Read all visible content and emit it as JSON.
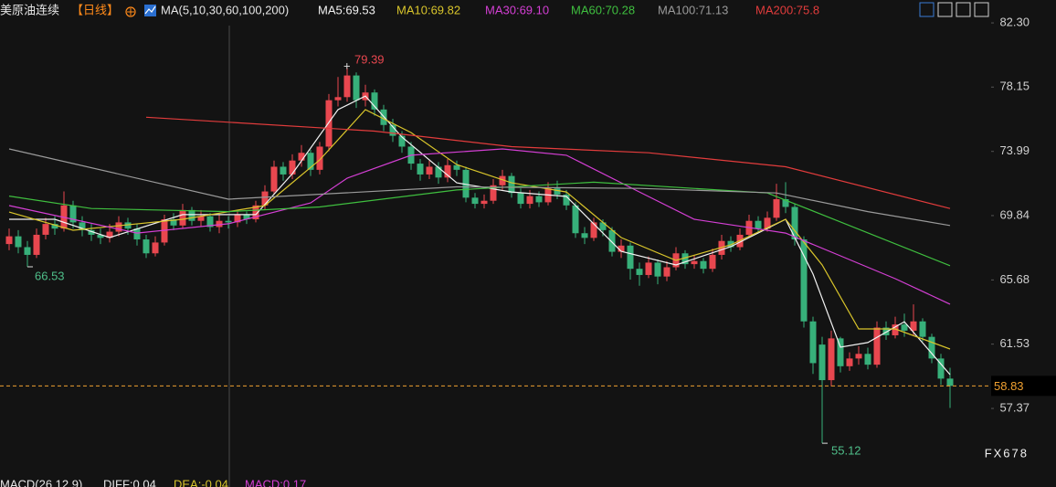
{
  "chart_data": {
    "type": "candlestick",
    "title": "美原油连续",
    "period": "【日线】",
    "indicator": "MA(5,10,30,60,100,200)",
    "up_color": "#e8474f",
    "down_color": "#37b07a",
    "ylim": [
      53.65,
      83.78
    ],
    "yticks": [
      {
        "value": 82.3,
        "label": "82.30"
      },
      78.15,
      73.99,
      69.84,
      65.68,
      61.53,
      57.37
    ],
    "grid": false,
    "open": [
      68.0,
      68.5,
      67.8,
      67.3,
      68.6,
      69.3,
      69.0,
      70.5,
      69.4,
      68.9,
      68.6,
      68.4,
      68.8,
      69.4,
      69.0,
      68.3,
      67.4,
      68.1,
      69.6,
      69.2,
      70.2,
      69.5,
      69.8,
      69.1,
      69.5,
      69.4,
      69.9,
      69.6,
      70.5,
      71.4,
      73.0,
      72.5,
      73.4,
      73.9,
      72.8,
      74.3,
      77.3,
      77.5,
      78.9,
      77.3,
      77.8,
      76.7,
      75.7,
      75.0,
      74.3,
      73.2,
      72.5,
      73.0,
      72.3,
      73.1,
      72.8,
      71.0,
      70.6,
      70.8,
      71.8,
      72.4,
      71.3,
      70.6,
      71.1,
      70.7,
      71.6,
      71.2,
      70.5,
      68.7,
      68.4,
      69.4,
      68.9,
      67.5,
      67.9,
      66.4,
      66.0,
      66.8,
      65.9,
      66.5,
      67.4,
      66.7,
      66.9,
      66.4,
      67.3,
      68.2,
      67.8,
      68.6,
      69.5,
      69.0,
      69.7,
      70.9,
      70.4,
      68.3,
      63.0,
      61.5,
      59.2,
      61.9,
      60.1,
      60.6,
      60.9,
      60.2,
      62.6,
      62.1,
      62.8,
      62.4,
      63.0,
      62.0,
      60.6,
      59.3
    ],
    "high": [
      69.0,
      68.9,
      68.2,
      69.0,
      69.7,
      69.8,
      71.4,
      70.8,
      69.8,
      69.3,
      69.0,
      69.3,
      69.8,
      69.7,
      69.3,
      68.6,
      68.5,
      69.9,
      70.0,
      70.6,
      70.4,
      70.2,
      70.0,
      69.9,
      69.8,
      70.2,
      70.1,
      70.8,
      71.8,
      73.4,
      73.3,
      73.8,
      74.4,
      74.1,
      74.6,
      77.7,
      78.8,
      79.39,
      79.1,
      78.3,
      78.0,
      77.0,
      76.1,
      75.3,
      74.6,
      73.5,
      73.4,
      73.3,
      73.5,
      73.4,
      73.0,
      71.3,
      71.2,
      72.2,
      72.8,
      72.6,
      71.6,
      71.5,
      71.4,
      72.0,
      72.1,
      71.5,
      70.7,
      69.1,
      69.7,
      69.6,
      69.1,
      68.3,
      68.1,
      66.8,
      67.2,
      67.0,
      66.9,
      67.8,
      67.6,
      67.3,
      67.1,
      67.7,
      68.6,
      68.5,
      69.0,
      69.9,
      69.8,
      70.1,
      71.9,
      72.0,
      70.6,
      68.5,
      63.3,
      62.0,
      62.4,
      62.0,
      61.0,
      61.4,
      61.3,
      63.0,
      63.0,
      63.3,
      63.5,
      64.1,
      63.2,
      62.2,
      60.9,
      60.0
    ],
    "low": [
      67.6,
      67.4,
      66.53,
      67.1,
      68.3,
      68.6,
      68.8,
      69.0,
      68.5,
      68.2,
      68.0,
      68.1,
      68.5,
      68.6,
      67.9,
      67.1,
      67.2,
      67.9,
      68.9,
      69.0,
      69.2,
      69.1,
      68.8,
      68.7,
      69.0,
      69.1,
      69.3,
      69.4,
      70.2,
      71.2,
      72.1,
      72.2,
      73.0,
      72.4,
      72.5,
      74.0,
      76.9,
      77.2,
      76.8,
      76.9,
      76.3,
      75.3,
      74.6,
      73.9,
      72.8,
      72.1,
      72.2,
      71.9,
      72.0,
      72.4,
      70.7,
      70.3,
      70.3,
      70.6,
      71.5,
      71.0,
      70.3,
      70.3,
      70.4,
      70.5,
      70.9,
      70.2,
      68.4,
      68.0,
      68.2,
      68.5,
      67.2,
      67.1,
      65.7,
      65.3,
      65.8,
      65.4,
      65.6,
      66.3,
      66.4,
      66.4,
      66.1,
      66.2,
      67.0,
      67.5,
      67.6,
      68.4,
      68.7,
      68.8,
      69.5,
      70.0,
      67.9,
      62.6,
      59.6,
      55.12,
      58.8,
      59.7,
      59.8,
      60.2,
      59.9,
      60.0,
      61.8,
      61.9,
      62.0,
      62.1,
      61.7,
      60.3,
      58.9,
      57.4
    ],
    "close": [
      68.5,
      67.8,
      67.3,
      68.6,
      69.3,
      69.0,
      70.5,
      69.4,
      68.9,
      68.6,
      68.4,
      68.8,
      69.4,
      69.0,
      68.3,
      67.4,
      68.1,
      69.6,
      69.2,
      70.2,
      69.5,
      69.8,
      69.1,
      69.5,
      69.4,
      69.9,
      69.6,
      70.5,
      71.4,
      73.0,
      72.5,
      73.4,
      73.9,
      72.8,
      74.3,
      77.3,
      77.5,
      78.9,
      77.3,
      77.8,
      76.7,
      75.7,
      75.0,
      74.3,
      73.2,
      72.5,
      73.0,
      72.3,
      73.1,
      72.8,
      71.0,
      70.6,
      70.8,
      71.8,
      72.4,
      71.3,
      70.6,
      71.1,
      70.7,
      71.6,
      71.2,
      70.5,
      68.7,
      68.4,
      69.4,
      68.9,
      67.5,
      67.9,
      66.4,
      66.0,
      66.8,
      65.9,
      66.5,
      67.4,
      66.7,
      66.9,
      66.4,
      67.3,
      68.2,
      67.8,
      68.6,
      69.5,
      69.0,
      69.7,
      70.9,
      70.4,
      68.3,
      63.0,
      60.3,
      59.2,
      61.9,
      60.1,
      60.6,
      60.9,
      60.2,
      62.6,
      62.1,
      62.8,
      62.4,
      63.0,
      62.0,
      60.6,
      59.3,
      58.83
    ],
    "series": [
      {
        "name": "MA5:69.53",
        "color": "#f2f2f2",
        "x": [
          0,
          5,
          11,
          19,
          27,
          31,
          36,
          39,
          43,
          49,
          55,
          61,
          67,
          73,
          79,
          85,
          88,
          91,
          94,
          98,
          103
        ],
        "values": [
          69.6,
          69.6,
          68.42,
          69.9,
          69.9,
          72.55,
          76.69,
          77.57,
          74.92,
          71.96,
          71.37,
          71.08,
          67.53,
          66.65,
          67.83,
          69.6,
          66.06,
          61.33,
          61.63,
          62.98,
          59.56
        ]
      },
      {
        "name": "MA10:69.82",
        "color": "#d9c52b",
        "x": [
          0,
          7,
          19,
          28,
          34,
          39,
          44,
          49,
          55,
          61,
          67,
          73,
          79,
          85,
          89,
          93,
          97,
          103
        ],
        "values": [
          70.07,
          68.89,
          69.6,
          70.49,
          73.44,
          76.69,
          75.21,
          73.14,
          71.96,
          71.37,
          68.42,
          66.94,
          67.95,
          69.6,
          66.65,
          62.51,
          62.51,
          61.21
        ]
      },
      {
        "name": "MA30:69.10",
        "color": "#d43fd4",
        "x": [
          0,
          14,
          24,
          33,
          37,
          44,
          54,
          61,
          69,
          75,
          85,
          91,
          97,
          103
        ],
        "values": [
          70.49,
          68.71,
          69.31,
          70.66,
          72.26,
          73.74,
          74.15,
          73.74,
          71.37,
          69.6,
          68.71,
          67.24,
          65.76,
          64.11
        ]
      },
      {
        "name": "MA60:70.28",
        "color": "#3fbf3f",
        "x": [
          0,
          9,
          24,
          34,
          49,
          64,
          83,
          89,
          103
        ],
        "values": [
          71.1,
          70.3,
          70.1,
          70.4,
          71.5,
          72.0,
          71.3,
          69.9,
          66.6
        ]
      },
      {
        "name": "MA100:71.13",
        "color": "#9a9a9a",
        "x": [
          0,
          24,
          49,
          69,
          84,
          94,
          103
        ],
        "values": [
          74.15,
          70.9,
          71.7,
          71.6,
          71.3,
          70.1,
          69.2
        ]
      },
      {
        "name": "MA200:75.8",
        "color": "#e23c3c",
        "x": [
          15,
          40,
          55,
          70,
          85,
          103
        ],
        "values": [
          76.2,
          75.3,
          74.3,
          73.9,
          73.0,
          70.3
        ]
      }
    ],
    "price_line_color": "#f0a030",
    "macd_labels": [
      {
        "text": "MACD(26,12,9)",
        "color": "#e6e6e6"
      },
      {
        "text": "DIFF:0.04",
        "color": "#e6e6e6"
      },
      {
        "text": "DEA:-0.04",
        "color": "#d9c52b"
      },
      {
        "text": "MACD:0.17",
        "color": "#d43fd4"
      }
    ],
    "watermark": "FX678"
  }
}
